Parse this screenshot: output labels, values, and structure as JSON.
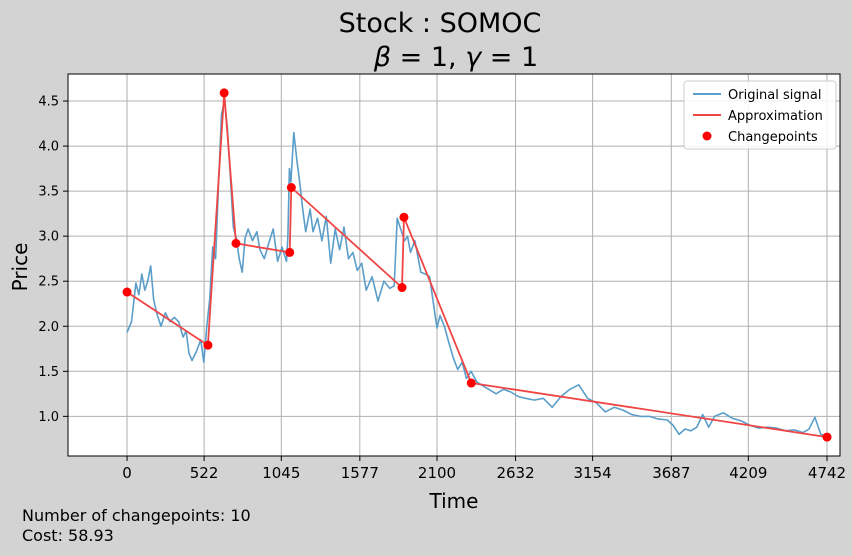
{
  "chart_data": {
    "type": "line",
    "title": "Stock : SOMOC",
    "subtitle": {
      "beta_symbol": "β",
      "gamma_symbol": "γ",
      "equals": " = ",
      "beta_value": "1",
      "gamma_value": "1",
      "separator": ", "
    },
    "xlabel": "Time",
    "ylabel": "Price",
    "xlim": [
      -400,
      4830
    ],
    "ylim": [
      0.56,
      4.8
    ],
    "xticks": [
      0,
      522,
      1045,
      1577,
      2100,
      2632,
      3154,
      3687,
      4209,
      4742
    ],
    "yticks": [
      1.0,
      1.5,
      2.0,
      2.5,
      3.0,
      3.5,
      4.0,
      4.5
    ],
    "ytick_labels": [
      "1.0",
      "1.5",
      "2.0",
      "2.5",
      "3.0",
      "3.5",
      "4.0",
      "4.5"
    ],
    "grid": true,
    "legend_position": "top-right",
    "legend": [
      "Original signal",
      "Approximation",
      "Changepoints"
    ],
    "colors": {
      "original": "#5a9ec9",
      "approximation": "#f04545",
      "changepoints": "#ff0000",
      "background": "#d3d3d3"
    },
    "series": [
      {
        "name": "Original signal",
        "style": "line",
        "x": [
          0,
          30,
          60,
          80,
          100,
          120,
          140,
          160,
          180,
          200,
          230,
          260,
          290,
          320,
          350,
          380,
          400,
          420,
          440,
          470,
          500,
          520,
          540,
          560,
          580,
          600,
          620,
          640,
          660,
          680,
          700,
          720,
          740,
          760,
          780,
          800,
          820,
          850,
          880,
          900,
          930,
          960,
          990,
          1020,
          1050,
          1080,
          1090,
          1100,
          1110,
          1130,
          1150,
          1170,
          1190,
          1210,
          1240,
          1260,
          1290,
          1320,
          1350,
          1380,
          1410,
          1440,
          1470,
          1500,
          1530,
          1560,
          1590,
          1620,
          1660,
          1700,
          1740,
          1780,
          1810,
          1830,
          1850,
          1880,
          1900,
          1920,
          1950,
          1990,
          2020,
          2050,
          2080,
          2100,
          2120,
          2150,
          2180,
          2210,
          2240,
          2270,
          2300,
          2330,
          2370,
          2400,
          2450,
          2500,
          2550,
          2600,
          2650,
          2700,
          2760,
          2820,
          2880,
          2940,
          3000,
          3060,
          3120,
          3180,
          3240,
          3300,
          3360,
          3420,
          3480,
          3540,
          3600,
          3660,
          3700,
          3740,
          3780,
          3820,
          3860,
          3900,
          3940,
          3980,
          4040,
          4100,
          4160,
          4220,
          4280,
          4340,
          4400,
          4460,
          4520,
          4580,
          4620,
          4660,
          4700,
          4742
        ],
        "y": [
          1.93,
          2.05,
          2.48,
          2.35,
          2.58,
          2.4,
          2.5,
          2.67,
          2.3,
          2.15,
          2.0,
          2.15,
          2.05,
          2.1,
          2.05,
          1.88,
          1.95,
          1.7,
          1.62,
          1.72,
          1.85,
          1.6,
          2.0,
          2.3,
          2.88,
          2.75,
          3.6,
          4.35,
          4.5,
          4.2,
          3.65,
          3.1,
          2.98,
          2.75,
          2.6,
          2.98,
          3.08,
          2.95,
          3.05,
          2.85,
          2.75,
          2.92,
          3.08,
          2.72,
          2.88,
          2.72,
          3.0,
          3.75,
          3.6,
          4.15,
          3.85,
          3.6,
          3.3,
          3.05,
          3.3,
          3.05,
          3.2,
          2.95,
          3.22,
          2.7,
          3.08,
          2.85,
          3.1,
          2.75,
          2.82,
          2.62,
          2.7,
          2.4,
          2.55,
          2.28,
          2.5,
          2.42,
          2.45,
          3.2,
          3.1,
          2.95,
          3.0,
          2.82,
          2.95,
          2.6,
          2.58,
          2.55,
          2.2,
          1.98,
          2.12,
          2.0,
          1.82,
          1.65,
          1.52,
          1.6,
          1.42,
          1.5,
          1.38,
          1.35,
          1.3,
          1.25,
          1.3,
          1.27,
          1.22,
          1.2,
          1.18,
          1.2,
          1.1,
          1.22,
          1.3,
          1.35,
          1.2,
          1.15,
          1.05,
          1.1,
          1.07,
          1.02,
          1.0,
          1.0,
          0.97,
          0.96,
          0.9,
          0.8,
          0.86,
          0.84,
          0.88,
          1.02,
          0.88,
          1.0,
          1.04,
          0.98,
          0.95,
          0.9,
          0.87,
          0.88,
          0.87,
          0.84,
          0.85,
          0.82,
          0.86,
          0.99,
          0.8,
          0.78
        ]
      },
      {
        "name": "Approximation",
        "style": "line",
        "x": [
          0,
          548,
          658,
          738,
          1102,
          1113,
          1863,
          1876,
          2332,
          4742
        ],
        "y": [
          2.38,
          1.79,
          4.59,
          2.92,
          2.82,
          3.54,
          2.43,
          3.21,
          1.37,
          0.77
        ]
      },
      {
        "name": "Changepoints",
        "style": "scatter",
        "x": [
          0,
          548,
          658,
          738,
          1102,
          1113,
          1863,
          1876,
          2332,
          4742
        ],
        "y": [
          2.38,
          1.79,
          4.59,
          2.92,
          2.82,
          3.54,
          2.43,
          3.21,
          1.37,
          0.77
        ]
      }
    ]
  },
  "footer": {
    "changepoints_label": "Number of changepoints: 10",
    "cost_label": "Cost: 58.93"
  }
}
